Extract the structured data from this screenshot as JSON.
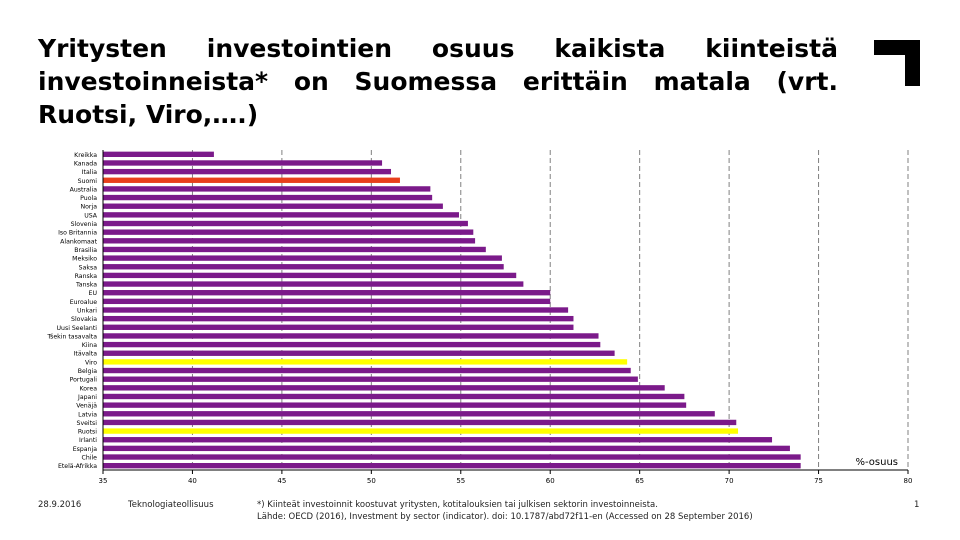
{
  "slide": {
    "title": "Yritysten investointien osuus kaikista kiinteistä investoinneista* on Suomessa erittäin matala (vrt. Ruotsi, Viro,….)",
    "footer_date": "28.9.2016",
    "footer_org": "Teknologiateollisuus",
    "footnote_line1": "*) Kiinteät investoinnit koostuvat yritysten, kotitalouksien tai julkisen sektorin investoinneista.",
    "footnote_line2": "Lähde: OECD (2016), Investment by sector (indicator). doi: 10.1787/abd72f11-en (Accessed on 28 September 2016)",
    "page_number": "1"
  },
  "colors": {
    "default_bar": "#7b1a8a",
    "highlight_finland": "#e8401c",
    "highlight_comparison": "#ffff00",
    "logo": "#000000",
    "gridline": "#808080"
  },
  "chart_data": {
    "type": "bar",
    "orientation": "horizontal",
    "unit_label": "%-osuus",
    "xlim": [
      35,
      80
    ],
    "x_ticks": [
      35,
      40,
      45,
      50,
      55,
      60,
      65,
      70,
      75,
      80
    ],
    "grid": "vertical dashed",
    "categories": [
      "Kreikka",
      "Kanada",
      "Italia",
      "Suomi",
      "Australia",
      "Puola",
      "Norja",
      "USA",
      "Slovenia",
      "Iso Britannia",
      "Alankomaat",
      "Brasilia",
      "Meksiko",
      "Saksa",
      "Ranska",
      "Tanska",
      "EU",
      "Euroalue",
      "Unkari",
      "Slovakia",
      "Uusi Seelanti",
      "Tšekin tasavalta",
      "Kiina",
      "Itävalta",
      "Viro",
      "Belgia",
      "Portugali",
      "Korea",
      "Japani",
      "Venäjä",
      "Latvia",
      "Sveitsi",
      "Ruotsi",
      "Irlanti",
      "Espanja",
      "Chile",
      "Etelä-Afrikka"
    ],
    "values": [
      41.2,
      50.6,
      51.1,
      51.6,
      53.3,
      53.4,
      54.0,
      54.9,
      55.4,
      55.7,
      55.8,
      56.4,
      57.3,
      57.4,
      58.1,
      58.5,
      60.0,
      60.0,
      61.0,
      61.3,
      61.3,
      62.7,
      62.8,
      63.6,
      64.3,
      64.5,
      64.9,
      66.4,
      67.5,
      67.6,
      69.2,
      70.4,
      70.5,
      72.4,
      73.4,
      74.0,
      74.0
    ],
    "highlight": {
      "Suomi": "highlight_finland",
      "Viro": "highlight_comparison",
      "Ruotsi": "highlight_comparison"
    }
  }
}
